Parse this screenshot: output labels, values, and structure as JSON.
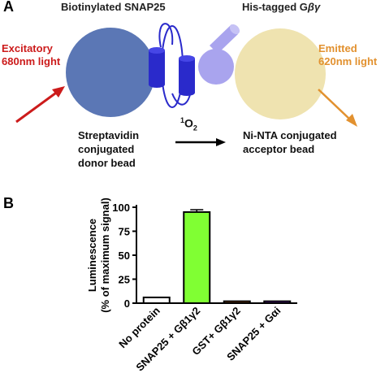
{
  "panel_a": {
    "letter": "A",
    "donor_title": "Biotinylated SNAP25",
    "acceptor_title_prefix": "His-tagged G",
    "acceptor_title_symbol": "βγ",
    "excitatory_line1": "Excitatory",
    "excitatory_line2": "680nm light",
    "emitted_line1": "Emitted",
    "emitted_line2": "620nm light",
    "donor_line1": "Streptavidin",
    "donor_line2": "conjugated",
    "donor_line3": "donor bead",
    "singlet_oxygen_sup": "1",
    "singlet_oxygen": "O",
    "singlet_oxygen_sub": "2",
    "acceptor_line1": "Ni-NTA conjugated",
    "acceptor_line2": "acceptor bead",
    "colors": {
      "donor_bead": "#5b77b5",
      "acceptor_bead": "#efe3b0",
      "snap25": "#2a2acb",
      "gbg": "#a9a4ee",
      "excitatory": "#cc1b1b",
      "emitted": "#e2912f"
    }
  },
  "panel_b": {
    "letter": "B",
    "chart_data": {
      "type": "bar",
      "ylabel_line1": "Luminescence",
      "ylabel_line2": "(% of maximum signal)",
      "ylim": [
        0,
        100
      ],
      "yticks": [
        "0",
        "25",
        "50",
        "75",
        "100"
      ],
      "categories": [
        "No protein",
        "SNAP25 + Gβ1γ2",
        "GST+ Gβ1γ2",
        "SNAP25 + Gαi"
      ],
      "values": [
        6,
        95,
        2,
        2
      ],
      "error": [
        0,
        2.5,
        0,
        0
      ],
      "colors": [
        "#ffffff",
        "#80ff33",
        "#d2691e",
        "#8a2be2"
      ]
    }
  }
}
